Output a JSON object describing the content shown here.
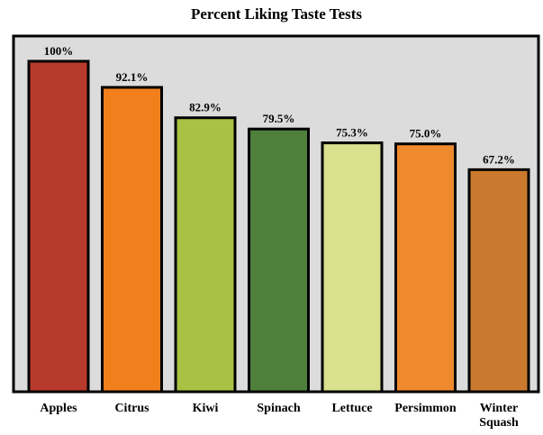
{
  "chart_data": {
    "type": "bar",
    "title": "Percent Liking Taste Tests",
    "categories": [
      "Apples",
      "Citrus",
      "Kiwi",
      "Spinach",
      "Lettuce",
      "Persimmon",
      "Winter Squash"
    ],
    "values": [
      100,
      92.1,
      82.9,
      79.5,
      75.3,
      75.0,
      67.2
    ],
    "value_labels": [
      "100%",
      "92.1%",
      "82.9%",
      "79.5%",
      "75.3%",
      "75.0%",
      "67.2%"
    ],
    "colors": [
      "#b83a2c",
      "#f07f1c",
      "#a9c244",
      "#4e7f3b",
      "#d9e08e",
      "#f08a2e",
      "#c97a2e"
    ]
  }
}
